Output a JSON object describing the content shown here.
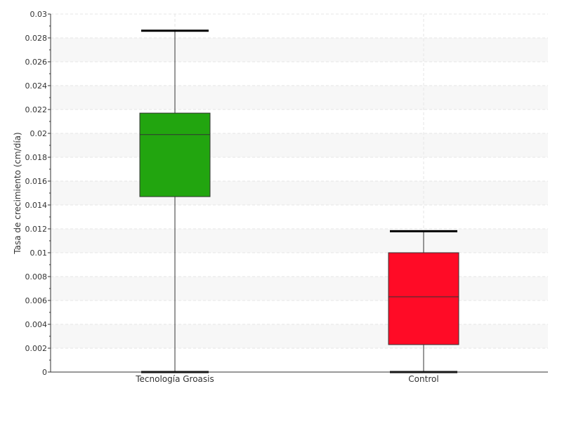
{
  "chart_data": {
    "type": "box",
    "title": "",
    "ylabel": "Tasa de crecimiento (cm/día)",
    "xlabel": "",
    "ylim": [
      0,
      0.03
    ],
    "yticks": [
      "0",
      "0.002",
      "0.004",
      "0.006",
      "0.008",
      "0.01",
      "0.012",
      "0.014",
      "0.016",
      "0.018",
      "0.02",
      "0.022",
      "0.024",
      "0.026",
      "0.028",
      "0.03"
    ],
    "grid": true,
    "legend": "none",
    "boxes": [
      {
        "category": "Tecnología Groasis",
        "min": 0.0,
        "q1": 0.0147,
        "median": 0.0199,
        "q3": 0.0217,
        "max": 0.0286,
        "color": "#22a50f"
      },
      {
        "category": "Control",
        "min": 0.0,
        "q1": 0.0023,
        "median": 0.0063,
        "q3": 0.01,
        "max": 0.0118,
        "color": "#ff0b26"
      }
    ]
  }
}
